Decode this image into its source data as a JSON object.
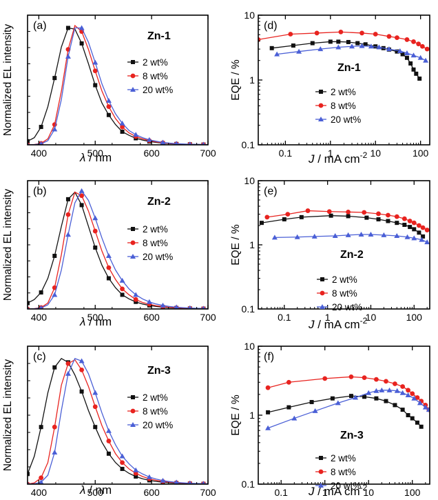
{
  "colors": {
    "black": "#111111",
    "red": "#e8231f",
    "blue": "#4a5fd6"
  },
  "chart_data": [
    {
      "type": "line",
      "panel": "(a)",
      "compound": "Zn-1",
      "xlabel_sym": "λ",
      "xlabel_unit": " / nm",
      "ylabel": "Normalized EL intensity",
      "xlim": [
        380,
        700
      ],
      "ylim": [
        0,
        1.0
      ],
      "xticks": [
        400,
        500,
        600,
        700
      ],
      "series": [
        {
          "name": "2 wt%",
          "color": "#111111",
          "marker": "square",
          "x": [
            380,
            392,
            404,
            416,
            428,
            440,
            452,
            464,
            476,
            488,
            500,
            512,
            524,
            536,
            548,
            560,
            572,
            584,
            596,
            608,
            620,
            632,
            644,
            656,
            668,
            680,
            692,
            700
          ],
          "y": [
            0.03,
            0.06,
            0.15,
            0.32,
            0.56,
            0.82,
            0.98,
            0.97,
            0.85,
            0.68,
            0.5,
            0.35,
            0.25,
            0.17,
            0.11,
            0.08,
            0.055,
            0.04,
            0.028,
            0.02,
            0.014,
            0.01,
            0.007,
            0.005,
            0.004,
            0.003,
            0.002,
            0.002
          ]
        },
        {
          "name": "8 wt%",
          "color": "#e8231f",
          "marker": "circle",
          "x": [
            380,
            392,
            404,
            416,
            428,
            440,
            452,
            464,
            476,
            488,
            500,
            512,
            524,
            536,
            548,
            560,
            572,
            584,
            596,
            608,
            620,
            632,
            644,
            656,
            668,
            680,
            692,
            700
          ],
          "y": [
            0.0,
            0.003,
            0.012,
            0.05,
            0.17,
            0.45,
            0.8,
            1.0,
            0.95,
            0.8,
            0.62,
            0.45,
            0.32,
            0.22,
            0.15,
            0.1,
            0.07,
            0.05,
            0.035,
            0.025,
            0.017,
            0.012,
            0.008,
            0.006,
            0.004,
            0.003,
            0.002,
            0.002
          ]
        },
        {
          "name": "20 wt%",
          "color": "#4a5fd6",
          "marker": "triangle",
          "x": [
            380,
            392,
            404,
            416,
            428,
            440,
            452,
            464,
            476,
            488,
            500,
            512,
            524,
            536,
            548,
            560,
            572,
            584,
            596,
            608,
            620,
            632,
            644,
            656,
            668,
            680,
            692,
            700
          ],
          "y": [
            0.0,
            0.002,
            0.008,
            0.035,
            0.13,
            0.38,
            0.74,
            0.98,
            0.98,
            0.86,
            0.69,
            0.51,
            0.37,
            0.26,
            0.18,
            0.12,
            0.085,
            0.06,
            0.042,
            0.03,
            0.02,
            0.014,
            0.01,
            0.007,
            0.005,
            0.004,
            0.003,
            0.002
          ]
        }
      ]
    },
    {
      "type": "line",
      "panel": "(b)",
      "compound": "Zn-2",
      "xlabel_sym": "λ",
      "xlabel_unit": " / nm",
      "ylabel": "Normalized EL intensity",
      "xlim": [
        380,
        700
      ],
      "ylim": [
        0,
        1.0
      ],
      "xticks": [
        400,
        500,
        600,
        700
      ],
      "series": [
        {
          "name": "2 wt%",
          "color": "#111111",
          "marker": "square",
          "x": [
            380,
            392,
            404,
            416,
            428,
            440,
            452,
            464,
            476,
            488,
            500,
            512,
            524,
            536,
            548,
            560,
            572,
            584,
            596,
            608,
            620,
            632,
            644,
            656,
            668,
            680,
            692,
            700
          ],
          "y": [
            0.05,
            0.08,
            0.14,
            0.26,
            0.45,
            0.7,
            0.93,
            0.99,
            0.88,
            0.7,
            0.52,
            0.37,
            0.26,
            0.18,
            0.12,
            0.085,
            0.06,
            0.042,
            0.03,
            0.021,
            0.015,
            0.011,
            0.008,
            0.006,
            0.004,
            0.003,
            0.002,
            0.002
          ]
        },
        {
          "name": "8 wt%",
          "color": "#e8231f",
          "marker": "circle",
          "x": [
            380,
            392,
            404,
            416,
            428,
            440,
            452,
            464,
            476,
            488,
            500,
            512,
            524,
            536,
            548,
            560,
            572,
            584,
            596,
            608,
            620,
            632,
            644,
            656,
            668,
            680,
            692,
            700
          ],
          "y": [
            0.0,
            0.003,
            0.012,
            0.05,
            0.18,
            0.46,
            0.8,
            0.99,
            0.96,
            0.83,
            0.66,
            0.49,
            0.35,
            0.25,
            0.17,
            0.12,
            0.08,
            0.055,
            0.04,
            0.028,
            0.02,
            0.014,
            0.01,
            0.007,
            0.005,
            0.004,
            0.003,
            0.002
          ]
        },
        {
          "name": "20 wt%",
          "color": "#4a5fd6",
          "marker": "triangle",
          "x": [
            380,
            392,
            404,
            416,
            428,
            440,
            452,
            464,
            476,
            488,
            500,
            512,
            524,
            536,
            548,
            560,
            572,
            584,
            596,
            608,
            620,
            632,
            644,
            656,
            668,
            680,
            692,
            700
          ],
          "y": [
            0.0,
            0.002,
            0.008,
            0.035,
            0.12,
            0.33,
            0.63,
            0.9,
            1.0,
            0.92,
            0.77,
            0.6,
            0.45,
            0.33,
            0.24,
            0.17,
            0.12,
            0.085,
            0.06,
            0.042,
            0.03,
            0.021,
            0.015,
            0.011,
            0.008,
            0.006,
            0.004,
            0.003
          ]
        }
      ]
    },
    {
      "type": "line",
      "panel": "(c)",
      "compound": "Zn-3",
      "xlabel_sym": "λ",
      "xlabel_unit": " / nm",
      "ylabel": "Normalized EL intensity",
      "xlim": [
        380,
        700
      ],
      "ylim": [
        0,
        1.0
      ],
      "xticks": [
        400,
        500,
        600,
        700
      ],
      "series": [
        {
          "name": "2 wt%",
          "color": "#111111",
          "marker": "square",
          "x": [
            380,
            392,
            404,
            416,
            428,
            440,
            452,
            464,
            476,
            488,
            500,
            512,
            524,
            536,
            548,
            560,
            572,
            584,
            596,
            608,
            620,
            632,
            644,
            656,
            668,
            680,
            692,
            700
          ],
          "y": [
            0.08,
            0.22,
            0.45,
            0.72,
            0.92,
            0.99,
            0.96,
            0.86,
            0.73,
            0.58,
            0.45,
            0.33,
            0.24,
            0.17,
            0.12,
            0.085,
            0.06,
            0.042,
            0.03,
            0.021,
            0.015,
            0.011,
            0.008,
            0.006,
            0.004,
            0.003,
            0.002,
            0.002
          ]
        },
        {
          "name": "8 wt%",
          "color": "#e8231f",
          "marker": "circle",
          "x": [
            380,
            392,
            404,
            416,
            428,
            440,
            452,
            464,
            476,
            488,
            500,
            512,
            524,
            536,
            548,
            560,
            572,
            584,
            596,
            608,
            620,
            632,
            644,
            656,
            668,
            680,
            692,
            700
          ],
          "y": [
            0.0,
            0.01,
            0.05,
            0.17,
            0.45,
            0.78,
            0.95,
            0.98,
            0.9,
            0.77,
            0.61,
            0.46,
            0.34,
            0.24,
            0.17,
            0.12,
            0.085,
            0.06,
            0.042,
            0.03,
            0.021,
            0.015,
            0.011,
            0.008,
            0.006,
            0.004,
            0.003,
            0.002
          ]
        },
        {
          "name": "20 wt%",
          "color": "#4a5fd6",
          "marker": "triangle",
          "x": [
            380,
            392,
            404,
            416,
            428,
            440,
            452,
            464,
            476,
            488,
            500,
            512,
            524,
            536,
            548,
            560,
            572,
            584,
            596,
            608,
            620,
            632,
            644,
            656,
            668,
            680,
            692,
            700
          ],
          "y": [
            0.0,
            0.003,
            0.015,
            0.07,
            0.25,
            0.58,
            0.87,
            0.99,
            0.97,
            0.87,
            0.72,
            0.56,
            0.42,
            0.31,
            0.22,
            0.16,
            0.11,
            0.08,
            0.056,
            0.04,
            0.028,
            0.02,
            0.014,
            0.01,
            0.007,
            0.005,
            0.004,
            0.003
          ]
        }
      ]
    },
    {
      "type": "line",
      "panel": "(d)",
      "compound": "Zn-1",
      "yscale": "log",
      "xscale": "log",
      "ylabel": "EQE / %",
      "xlabel_sym": "J",
      "xlabel_unit": " / mA cm",
      "xlabel_sup": "-2",
      "xlim": [
        0.025,
        160
      ],
      "ylim": [
        0.1,
        10
      ],
      "xticks": [
        0.1,
        1,
        10,
        100
      ],
      "yticks": [
        0.1,
        1,
        10
      ],
      "series": [
        {
          "name": "2 wt%",
          "color": "#111111",
          "marker": "square",
          "x": [
            0.05,
            0.15,
            0.4,
            1.0,
            1.5,
            2.5,
            4,
            6,
            10,
            15,
            20,
            30,
            40,
            50,
            60,
            70,
            80,
            95
          ],
          "y": [
            3.1,
            3.4,
            3.7,
            3.9,
            3.9,
            3.85,
            3.7,
            3.55,
            3.3,
            3.1,
            2.95,
            2.75,
            2.5,
            2.2,
            1.8,
            1.45,
            1.25,
            1.05
          ]
        },
        {
          "name": "8 wt%",
          "color": "#e8231f",
          "marker": "circle",
          "x": [
            0.025,
            0.13,
            0.5,
            1.7,
            5,
            10,
            20,
            30,
            50,
            70,
            90,
            110,
            140
          ],
          "y": [
            4.2,
            5.1,
            5.3,
            5.5,
            5.3,
            5.1,
            4.7,
            4.5,
            4.2,
            3.9,
            3.6,
            3.3,
            3.0
          ]
        },
        {
          "name": "20 wt%",
          "color": "#4a5fd6",
          "marker": "triangle",
          "x": [
            0.065,
            0.2,
            0.6,
            1.5,
            3,
            5,
            8,
            12,
            20,
            35,
            50,
            70,
            100,
            130
          ],
          "y": [
            2.5,
            2.75,
            3.0,
            3.2,
            3.3,
            3.35,
            3.3,
            3.2,
            3.0,
            2.8,
            2.6,
            2.4,
            2.2,
            2.0
          ]
        }
      ]
    },
    {
      "type": "line",
      "panel": "(e)",
      "compound": "Zn-2",
      "yscale": "log",
      "xscale": "log",
      "ylabel": "EQE / %",
      "xlabel_sym": "J",
      "xlabel_unit": " / mA cm",
      "xlabel_sup": "-2",
      "xlim": [
        0.025,
        230
      ],
      "ylim": [
        0.1,
        10
      ],
      "xticks": [
        0.1,
        1,
        10,
        100
      ],
      "yticks": [
        0.1,
        1,
        10
      ],
      "series": [
        {
          "name": "2 wt%",
          "color": "#111111",
          "marker": "square",
          "x": [
            0.03,
            0.1,
            0.25,
            1.2,
            3,
            8,
            15,
            25,
            40,
            60,
            80,
            100,
            130,
            160
          ],
          "y": [
            2.2,
            2.5,
            2.7,
            2.85,
            2.8,
            2.65,
            2.5,
            2.35,
            2.2,
            2.05,
            1.9,
            1.75,
            1.55,
            1.35
          ]
        },
        {
          "name": "8 wt%",
          "color": "#e8231f",
          "marker": "circle",
          "x": [
            0.04,
            0.12,
            0.35,
            1.1,
            3,
            7,
            15,
            25,
            40,
            60,
            80,
            100,
            130,
            160,
            200
          ],
          "y": [
            2.7,
            3.0,
            3.4,
            3.3,
            3.25,
            3.2,
            3.05,
            2.9,
            2.75,
            2.55,
            2.35,
            2.2,
            2.0,
            1.85,
            1.7
          ]
        },
        {
          "name": "20 wt%",
          "color": "#4a5fd6",
          "marker": "triangle",
          "x": [
            0.06,
            0.2,
            0.5,
            1.5,
            3,
            6,
            10,
            20,
            40,
            70,
            100,
            150,
            200
          ],
          "y": [
            1.3,
            1.32,
            1.35,
            1.38,
            1.42,
            1.45,
            1.45,
            1.42,
            1.38,
            1.32,
            1.27,
            1.2,
            1.1
          ]
        }
      ]
    },
    {
      "type": "line",
      "panel": "(f)",
      "compound": "Zn-3",
      "yscale": "log",
      "xscale": "log",
      "ylabel": "EQE / %",
      "xlabel_sym": "J",
      "xlabel_unit": " / mA cm",
      "xlabel_sup": "-2",
      "xlim": [
        0.03,
        250
      ],
      "ylim": [
        0.1,
        10
      ],
      "xticks": [
        0.1,
        1,
        10,
        100
      ],
      "yticks": [
        0.1,
        1,
        10
      ],
      "series": [
        {
          "name": "2 wt%",
          "color": "#111111",
          "marker": "square",
          "x": [
            0.05,
            0.15,
            0.5,
            1.5,
            4,
            8,
            15,
            25,
            40,
            60,
            80,
            100,
            130,
            160
          ],
          "y": [
            1.1,
            1.3,
            1.55,
            1.75,
            1.9,
            1.85,
            1.75,
            1.6,
            1.4,
            1.2,
            1.0,
            0.9,
            0.78,
            0.68
          ]
        },
        {
          "name": "8 wt%",
          "color": "#e8231f",
          "marker": "circle",
          "x": [
            0.05,
            0.15,
            1.0,
            4,
            8,
            15,
            25,
            40,
            60,
            80,
            100,
            130,
            160,
            200,
            240
          ],
          "y": [
            2.5,
            3.0,
            3.4,
            3.6,
            3.5,
            3.3,
            3.1,
            2.85,
            2.6,
            2.3,
            2.05,
            1.8,
            1.6,
            1.4,
            1.2
          ]
        },
        {
          "name": "20 wt%",
          "color": "#4a5fd6",
          "marker": "triangle",
          "x": [
            0.05,
            0.2,
            0.6,
            2,
            5,
            10,
            15,
            20,
            30,
            45,
            60,
            80,
            110,
            150,
            200,
            240
          ],
          "y": [
            0.65,
            0.9,
            1.15,
            1.5,
            1.8,
            2.1,
            2.25,
            2.3,
            2.3,
            2.25,
            2.1,
            1.95,
            1.75,
            1.5,
            1.3,
            1.2
          ]
        }
      ]
    }
  ]
}
